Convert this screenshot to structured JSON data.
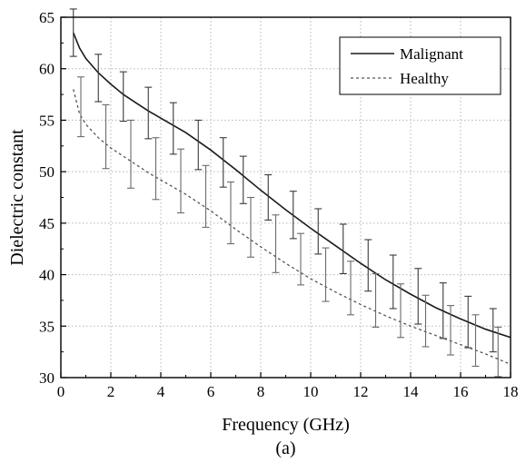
{
  "chart_data": {
    "type": "line",
    "title": "",
    "caption": "(a)",
    "xlabel": "Frequency (GHz)",
    "ylabel": "Dielectric constant",
    "xlim": [
      0,
      18
    ],
    "ylim": [
      30,
      65
    ],
    "xticks": [
      0,
      2,
      4,
      6,
      8,
      10,
      12,
      14,
      16,
      18
    ],
    "yticks": [
      30,
      35,
      40,
      45,
      50,
      55,
      60,
      65
    ],
    "grid": true,
    "legend_position": "top-right",
    "series": [
      {
        "name": "Malignant",
        "line_style": "solid",
        "color": "#1a1a1a",
        "x": [
          0.5,
          0.75,
          1.0,
          1.5,
          2.0,
          2.5,
          3.0,
          3.5,
          4.0,
          5.0,
          6.0,
          7.0,
          8.0,
          9.0,
          10.0,
          11.0,
          12.0,
          13.0,
          14.0,
          15.0,
          16.0,
          17.0,
          18.0
        ],
        "y": [
          63.5,
          62.0,
          61.0,
          59.6,
          58.5,
          57.5,
          56.7,
          55.9,
          55.2,
          53.8,
          52.1,
          50.2,
          48.2,
          46.3,
          44.5,
          42.8,
          41.1,
          39.5,
          38.1,
          36.8,
          35.7,
          34.7,
          33.9
        ],
        "error_bars": {
          "x": [
            0.5,
            1.5,
            2.5,
            3.5,
            4.5,
            5.5,
            6.5,
            7.3,
            8.3,
            9.3,
            10.3,
            11.3,
            12.3,
            13.3,
            14.3,
            15.3,
            16.3,
            17.3
          ],
          "y": [
            63.5,
            59.1,
            57.3,
            55.7,
            54.2,
            52.6,
            50.9,
            49.2,
            47.5,
            45.8,
            44.2,
            42.5,
            40.9,
            39.3,
            37.9,
            36.5,
            35.4,
            34.6
          ],
          "err": [
            2.3,
            2.3,
            2.4,
            2.5,
            2.5,
            2.4,
            2.4,
            2.3,
            2.2,
            2.3,
            2.2,
            2.4,
            2.5,
            2.6,
            2.7,
            2.7,
            2.5,
            2.1
          ]
        }
      },
      {
        "name": "Healthy",
        "line_style": "dotted",
        "color": "#555555",
        "x": [
          0.5,
          0.75,
          1.0,
          1.5,
          2.0,
          2.5,
          3.0,
          3.5,
          4.0,
          5.0,
          6.0,
          7.0,
          8.0,
          9.0,
          10.0,
          11.0,
          12.0,
          13.0,
          14.0,
          15.0,
          16.0,
          17.0,
          18.0
        ],
        "y": [
          58.0,
          55.6,
          54.6,
          53.3,
          52.3,
          51.5,
          50.7,
          49.9,
          49.2,
          47.8,
          46.2,
          44.4,
          42.7,
          41.1,
          39.6,
          38.3,
          37.1,
          36.0,
          35.0,
          34.1,
          33.2,
          32.3,
          31.3
        ],
        "error_bars": {
          "x": [
            0.8,
            1.8,
            2.8,
            3.8,
            4.8,
            5.8,
            6.8,
            7.6,
            8.6,
            9.6,
            10.6,
            11.6,
            12.6,
            13.6,
            14.6,
            15.6,
            16.6,
            17.5
          ],
          "y": [
            56.3,
            53.4,
            51.7,
            50.3,
            49.1,
            47.6,
            46.0,
            44.6,
            43.0,
            41.5,
            40.0,
            38.7,
            37.5,
            36.5,
            35.5,
            34.6,
            33.6,
            32.5
          ],
          "err": [
            2.9,
            3.1,
            3.3,
            3.0,
            3.1,
            3.0,
            3.0,
            2.9,
            2.8,
            2.5,
            2.6,
            2.6,
            2.6,
            2.6,
            2.5,
            2.4,
            2.5,
            2.4
          ]
        }
      }
    ]
  }
}
